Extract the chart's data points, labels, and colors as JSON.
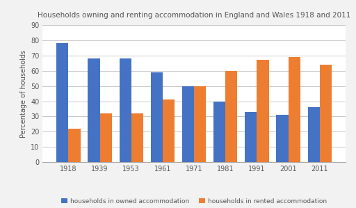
{
  "title": "Households owning and renting accommodation in England and Wales 1918 and 2011",
  "years": [
    "1918",
    "1939",
    "1953",
    "1961",
    "1971",
    "1981",
    "1991",
    "2001",
    "2011"
  ],
  "owned": [
    78,
    68,
    68,
    59,
    50,
    40,
    33,
    31,
    36
  ],
  "rented": [
    22,
    32,
    32,
    41,
    50,
    60,
    67,
    69,
    64
  ],
  "owned_color": "#4472c4",
  "rented_color": "#ed7d31",
  "ylabel": "Percentage of households",
  "legend_owned": "households in owned accommodation",
  "legend_rented": "households in rented accommodation",
  "ylim": [
    0,
    90
  ],
  "yticks": [
    0,
    10,
    20,
    30,
    40,
    50,
    60,
    70,
    80,
    90
  ],
  "background_color": "#f2f2f2",
  "plot_bg_color": "#ffffff",
  "grid_color": "#c8c8c8",
  "title_fontsize": 7.5,
  "label_fontsize": 7,
  "tick_fontsize": 7,
  "legend_fontsize": 6.5
}
